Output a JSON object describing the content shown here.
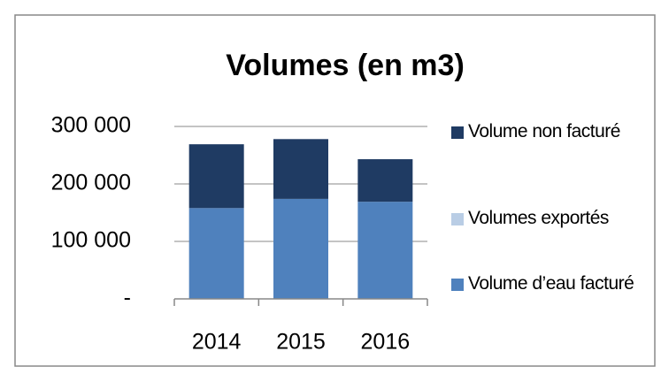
{
  "chart_data": {
    "type": "bar",
    "stacked": true,
    "title": "Volumes (en m3)",
    "categories": [
      "2014",
      "2015",
      "2016"
    ],
    "series": [
      {
        "name": "Volume d’eau facturé",
        "color": "#4f81bd",
        "values": [
          158000,
          174000,
          169000
        ]
      },
      {
        "name": "Volumes exportés",
        "color": "#b9cde5",
        "values": [
          0,
          0,
          0
        ]
      },
      {
        "name": "Volume non facturé",
        "color": "#1f3b63",
        "values": [
          111000,
          104000,
          74000
        ]
      }
    ],
    "ylim": [
      0,
      300000
    ],
    "yticks": [
      {
        "value": 0,
        "label": "-"
      },
      {
        "value": 100000,
        "label": "100 000"
      },
      {
        "value": 200000,
        "label": "200 000"
      },
      {
        "value": 300000,
        "label": "300 000"
      }
    ],
    "grid": true,
    "legend": "right"
  }
}
